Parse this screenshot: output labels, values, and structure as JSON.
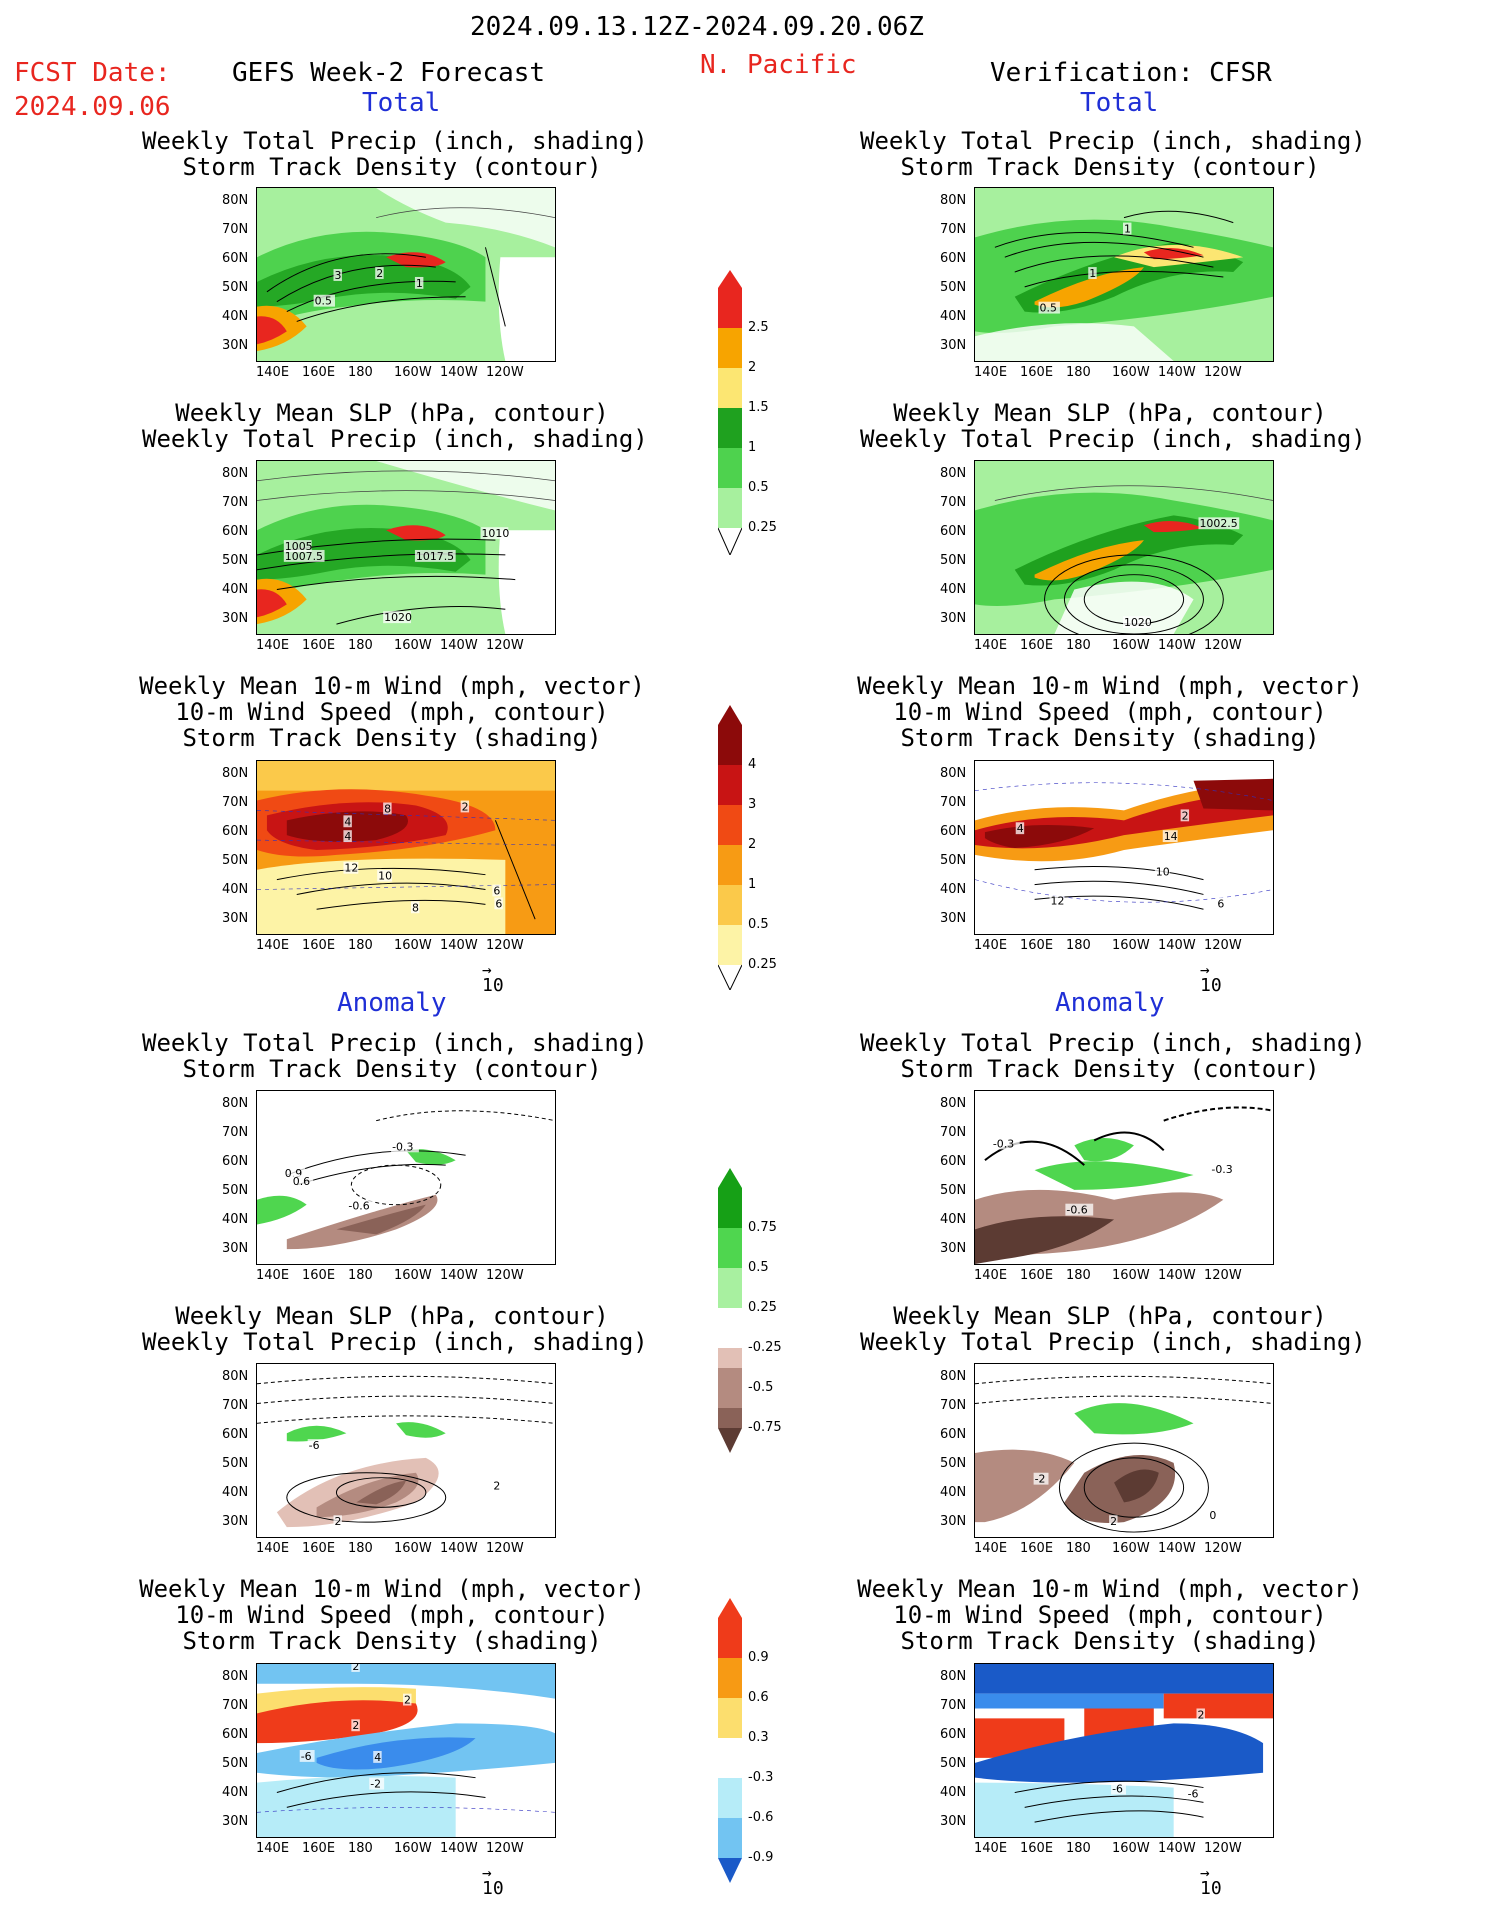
{
  "header": {
    "date_range": "2024.09.13.12Z-2024.09.20.06Z",
    "fcst_label": "FCST Date:",
    "fcst_date": "2024.09.06",
    "left_title": "GEFS Week-2 Forecast",
    "region": "N. Pacific",
    "right_title": "Verification: CFSR"
  },
  "sections": {
    "total": "Total",
    "anomaly": "Anomaly"
  },
  "titles": {
    "precip_storm": [
      "Weekly Total Precip (inch, shading)",
      "Storm Track Density (contour)"
    ],
    "slp_precip": [
      "Weekly Mean SLP (hPa, contour)",
      "Weekly Total Precip (inch, shading)"
    ],
    "wind_storm": [
      "Weekly Mean 10-m Wind (mph, vector)",
      "10-m Wind Speed (mph, contour)",
      "Storm Track Density (shading)"
    ]
  },
  "axes": {
    "lat_labels": [
      "80N",
      "70N",
      "60N",
      "50N",
      "40N",
      "30N"
    ],
    "lon_labels": [
      "140E",
      "160E",
      "180",
      "160W",
      "140W",
      "120W"
    ]
  },
  "vector_scale": "10",
  "colorbars": {
    "precip_total": {
      "labels": [
        "2.5",
        "2",
        "1.5",
        "1",
        "0.5",
        "0.25"
      ],
      "colors": [
        "#e8261f",
        "#f7a400",
        "#fce672",
        "#1fa11f",
        "#4ed24e",
        "#a7f09e"
      ]
    },
    "storm_total": {
      "labels": [
        "4",
        "3",
        "2",
        "1",
        "0.5",
        "0.25"
      ],
      "colors": [
        "#8c0a0a",
        "#c81414",
        "#f04a14",
        "#f79b14",
        "#fbc94a",
        "#fdf3a6"
      ]
    },
    "precip_anom": {
      "labels": [
        "0.75",
        "0.5",
        "0.25",
        "-0.25",
        "-0.5",
        "-0.75"
      ],
      "colors": [
        "#16a016",
        "#4fd64f",
        "#a8f0a0",
        "#ffffff",
        "#e2c0b6",
        "#b48b80",
        "#8a6258",
        "#5c3b33"
      ]
    },
    "storm_anom": {
      "labels": [
        "0.9",
        "0.6",
        "0.3",
        "-0.3",
        "-0.6",
        "-0.9"
      ],
      "colors": [
        "#ef3b1a",
        "#f79a14",
        "#fcde6e",
        "#ffffff",
        "#b6ecf8",
        "#72c4f2",
        "#3a8cec",
        "#1a5ac8"
      ]
    }
  },
  "contour_labels": {
    "l1": [
      "3",
      "2",
      "1",
      "0.5"
    ],
    "r1": [
      "1",
      "1",
      "0.5"
    ],
    "l2": [
      "1005",
      "1007.5",
      "1017.5",
      "1010",
      "1020"
    ],
    "r2": [
      "1002.5",
      "1020"
    ],
    "l3": [
      "4",
      "8",
      "4",
      "2",
      "12",
      "10",
      "8",
      "6",
      "6"
    ],
    "r3": [
      "4",
      "2",
      "14",
      "10",
      "12",
      "6"
    ],
    "l4": [
      "-0.3",
      "0.9",
      "0.6",
      "-0.6"
    ],
    "r4": [
      "-0.3",
      "-0.3",
      "-0.6"
    ],
    "l5": [
      "-6",
      "2",
      "2"
    ],
    "r5": [
      "-2",
      "2",
      "0"
    ],
    "l6": [
      "2",
      "2",
      "2",
      "4",
      "-6",
      "-2"
    ],
    "r6": [
      "2",
      "-6",
      "-6"
    ]
  }
}
